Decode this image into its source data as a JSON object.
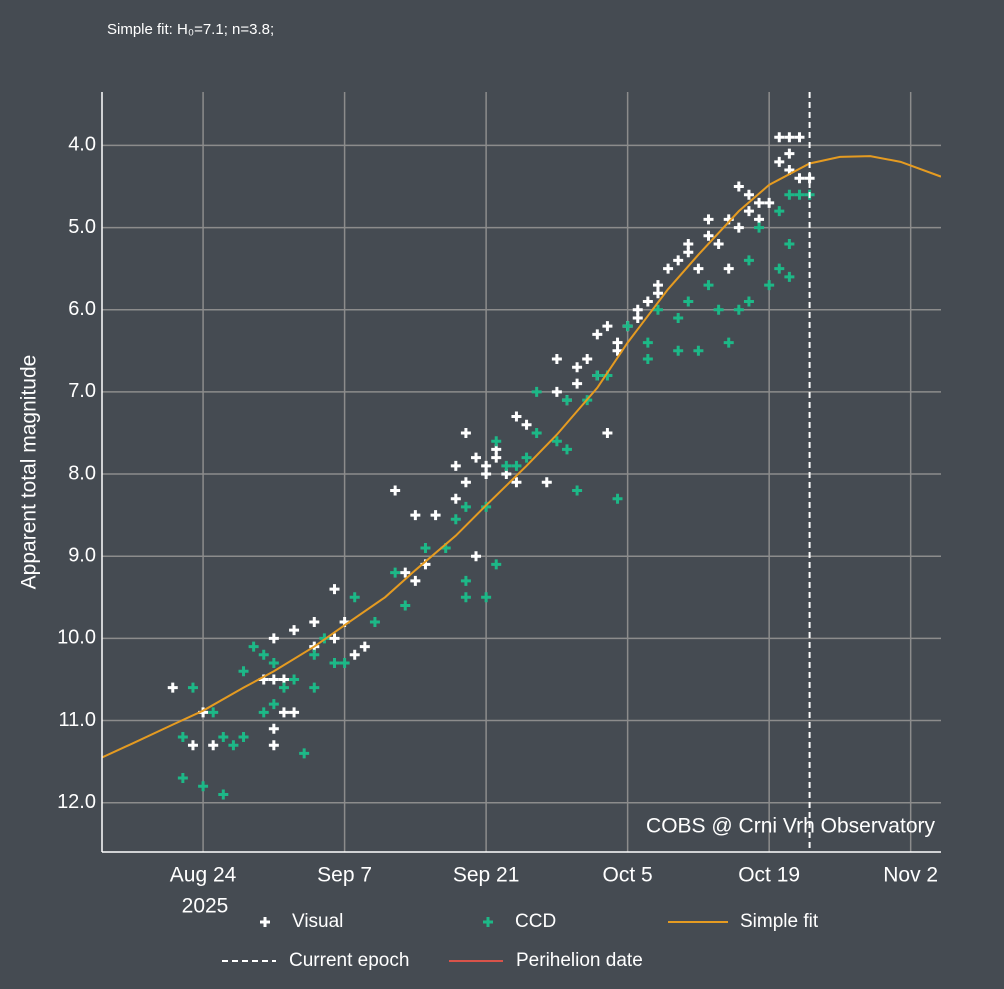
{
  "chart_data": {
    "type": "scatter",
    "title": "Simple fit: H₀=7.1; n=3.8;",
    "y_label": "Apparent total magnitude",
    "annotation": "COBS @ Crni Vrh Observatory",
    "x_year_label": "2025",
    "xlim": [
      "2025-08-14",
      "2025-11-05"
    ],
    "xticks": [
      {
        "value": "2025-08-24",
        "label": "Aug 24"
      },
      {
        "value": "2025-09-07",
        "label": "Sep 7"
      },
      {
        "value": "2025-09-21",
        "label": "Sep 21"
      },
      {
        "value": "2025-10-05",
        "label": "Oct 5"
      },
      {
        "value": "2025-10-19",
        "label": "Oct 19"
      },
      {
        "value": "2025-11-02",
        "label": "Nov 2"
      }
    ],
    "ylim": [
      3.35,
      12.6
    ],
    "y_inverted": true,
    "yticks": [
      {
        "value": 4,
        "label": "4.0"
      },
      {
        "value": 5,
        "label": "5.0"
      },
      {
        "value": 6,
        "label": "6.0"
      },
      {
        "value": 7,
        "label": "7.0"
      },
      {
        "value": 8,
        "label": "8.0"
      },
      {
        "value": 9,
        "label": "9.0"
      },
      {
        "value": 10,
        "label": "10.0"
      },
      {
        "value": 11,
        "label": "11.0"
      },
      {
        "value": 12,
        "label": "12.0"
      }
    ],
    "grid": true,
    "series": [
      {
        "name": "Visual",
        "type": "scatter",
        "color": "#ffffff",
        "x": [
          "2025-08-21",
          "2025-08-24",
          "2025-08-25",
          "2025-08-23",
          "2025-08-30",
          "2025-08-31",
          "2025-08-31",
          "2025-09-01",
          "2025-08-31",
          "2025-08-31",
          "2025-09-01",
          "2025-09-02",
          "2025-09-02",
          "2025-09-04",
          "2025-09-04",
          "2025-09-06",
          "2025-09-07",
          "2025-09-06",
          "2025-09-08",
          "2025-09-09",
          "2025-09-12",
          "2025-09-14",
          "2025-09-13",
          "2025-09-14",
          "2025-09-15",
          "2025-09-16",
          "2025-09-18",
          "2025-09-18",
          "2025-09-19",
          "2025-09-19",
          "2025-09-20",
          "2025-09-21",
          "2025-09-21",
          "2025-09-22",
          "2025-09-20",
          "2025-09-22",
          "2025-09-23",
          "2025-09-24",
          "2025-09-24",
          "2025-09-25",
          "2025-09-27",
          "2025-09-28",
          "2025-09-28",
          "2025-09-29",
          "2025-09-30",
          "2025-09-30",
          "2025-10-01",
          "2025-10-02",
          "2025-10-02",
          "2025-10-03",
          "2025-10-03",
          "2025-10-04",
          "2025-10-04",
          "2025-10-05",
          "2025-10-06",
          "2025-10-06",
          "2025-10-07",
          "2025-10-08",
          "2025-10-08",
          "2025-10-09",
          "2025-10-10",
          "2025-10-11",
          "2025-10-11",
          "2025-10-12",
          "2025-10-13",
          "2025-10-13",
          "2025-10-14",
          "2025-10-15",
          "2025-10-15",
          "2025-10-16",
          "2025-10-16",
          "2025-10-17",
          "2025-10-17",
          "2025-10-18",
          "2025-10-18",
          "2025-10-19",
          "2025-10-20",
          "2025-10-20",
          "2025-10-21",
          "2025-10-21",
          "2025-10-21",
          "2025-10-22",
          "2025-10-22",
          "2025-10-23"
        ],
        "values": [
          10.6,
          10.9,
          11.3,
          11.3,
          10.5,
          10.5,
          10.0,
          10.5,
          11.1,
          11.3,
          10.9,
          10.9,
          9.9,
          9.8,
          10.1,
          9.4,
          9.8,
          10.0,
          10.2,
          10.1,
          8.2,
          8.5,
          9.2,
          9.3,
          9.1,
          8.5,
          8.3,
          7.9,
          7.5,
          8.1,
          7.8,
          7.9,
          8.0,
          7.7,
          9.0,
          7.8,
          8.0,
          8.1,
          7.3,
          7.4,
          8.1,
          7.0,
          6.6,
          7.1,
          6.9,
          6.7,
          6.6,
          6.8,
          6.3,
          6.2,
          7.5,
          6.5,
          6.4,
          6.2,
          6.1,
          6.0,
          5.9,
          5.7,
          5.8,
          5.5,
          5.4,
          5.2,
          5.3,
          5.5,
          4.9,
          5.1,
          5.2,
          4.9,
          5.5,
          4.5,
          5.0,
          4.8,
          4.6,
          4.7,
          4.9,
          4.7,
          3.9,
          4.2,
          3.9,
          4.3,
          4.1,
          3.9,
          4.4,
          4.4
        ]
      },
      {
        "name": "CCD",
        "type": "scatter",
        "color": "#1db887",
        "x": [
          "2025-08-22",
          "2025-08-22",
          "2025-08-23",
          "2025-08-24",
          "2025-08-25",
          "2025-08-26",
          "2025-08-26",
          "2025-08-27",
          "2025-08-28",
          "2025-08-28",
          "2025-08-29",
          "2025-08-30",
          "2025-08-30",
          "2025-08-31",
          "2025-08-31",
          "2025-09-01",
          "2025-09-02",
          "2025-09-03",
          "2025-09-04",
          "2025-09-04",
          "2025-09-05",
          "2025-09-06",
          "2025-09-07",
          "2025-09-08",
          "2025-09-10",
          "2025-09-12",
          "2025-09-13",
          "2025-09-15",
          "2025-09-17",
          "2025-09-18",
          "2025-09-19",
          "2025-09-19",
          "2025-09-19",
          "2025-09-21",
          "2025-09-21",
          "2025-09-22",
          "2025-09-22",
          "2025-09-23",
          "2025-09-24",
          "2025-09-25",
          "2025-09-26",
          "2025-09-26",
          "2025-09-28",
          "2025-09-29",
          "2025-09-29",
          "2025-09-30",
          "2025-10-01",
          "2025-10-02",
          "2025-10-03",
          "2025-10-04",
          "2025-10-05",
          "2025-10-07",
          "2025-10-07",
          "2025-10-08",
          "2025-10-10",
          "2025-10-10",
          "2025-10-11",
          "2025-10-12",
          "2025-10-13",
          "2025-10-14",
          "2025-10-15",
          "2025-10-16",
          "2025-10-17",
          "2025-10-17",
          "2025-10-18",
          "2025-10-19",
          "2025-10-20",
          "2025-10-20",
          "2025-10-21",
          "2025-10-21",
          "2025-10-22",
          "2025-10-23",
          "2025-10-21"
        ],
        "values": [
          11.7,
          11.2,
          10.6,
          11.8,
          10.9,
          11.9,
          11.2,
          11.3,
          11.2,
          10.4,
          10.1,
          10.2,
          10.9,
          10.8,
          10.3,
          10.6,
          10.5,
          11.4,
          10.2,
          10.6,
          10.0,
          10.3,
          10.3,
          9.5,
          9.8,
          9.2,
          9.6,
          8.9,
          8.9,
          8.55,
          9.3,
          9.5,
          8.4,
          9.5,
          8.4,
          9.1,
          7.6,
          7.9,
          7.9,
          7.8,
          7.5,
          7.0,
          7.6,
          7.7,
          7.1,
          8.2,
          7.1,
          6.8,
          6.8,
          8.3,
          6.2,
          6.4,
          6.6,
          6.0,
          6.5,
          6.1,
          5.9,
          6.5,
          5.7,
          6.0,
          6.4,
          6.0,
          5.4,
          5.9,
          5.0,
          5.7,
          5.5,
          4.8,
          5.6,
          4.6,
          4.6,
          4.6,
          5.2
        ]
      },
      {
        "name": "Simple fit",
        "type": "line",
        "color": "#e59b21",
        "x": [
          "2025-08-14",
          "2025-08-17",
          "2025-08-21",
          "2025-08-24",
          "2025-08-28",
          "2025-08-31",
          "2025-09-04",
          "2025-09-07",
          "2025-09-11",
          "2025-09-14",
          "2025-09-18",
          "2025-09-21",
          "2025-09-25",
          "2025-09-28",
          "2025-10-02",
          "2025-10-05",
          "2025-10-09",
          "2025-10-12",
          "2025-10-16",
          "2025-10-19",
          "2025-10-23",
          "2025-10-26",
          "2025-10-29",
          "2025-11-01",
          "2025-11-05"
        ],
        "values": [
          11.45,
          11.28,
          11.05,
          10.88,
          10.6,
          10.4,
          10.1,
          9.84,
          9.5,
          9.17,
          8.75,
          8.38,
          7.9,
          7.52,
          6.95,
          6.4,
          5.75,
          5.33,
          4.8,
          4.48,
          4.22,
          4.14,
          4.13,
          4.2,
          4.38
        ]
      }
    ],
    "vlines": [
      {
        "name": "Current epoch",
        "x": "2025-10-23",
        "color": "#ffffff",
        "dashed": true
      },
      {
        "name": "Perihelion date",
        "color": "#d8534a",
        "dashed": false
      }
    ]
  }
}
